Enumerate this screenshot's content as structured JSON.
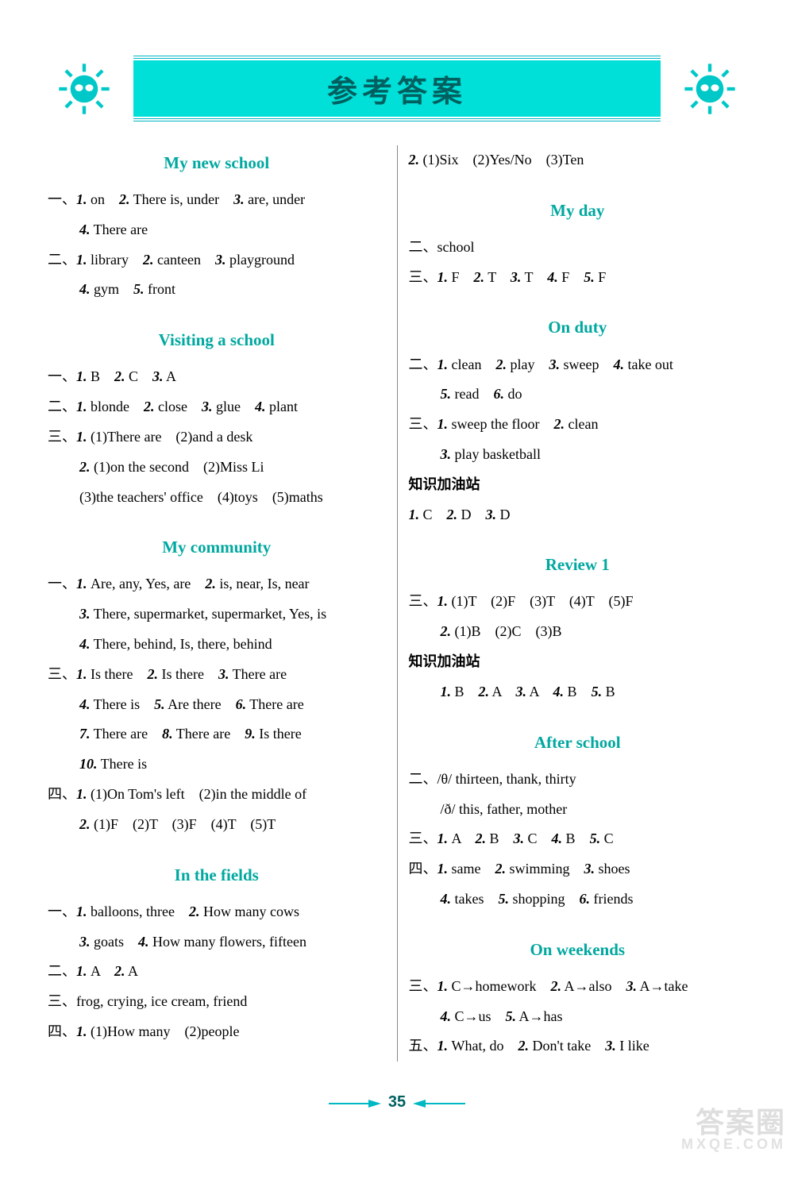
{
  "colors": {
    "accent": "#00b8c4",
    "banner_bg": "#00e0d8",
    "banner_text": "#006060",
    "section_title": "#00a8a0",
    "body_text": "#000000",
    "divider": "#888888",
    "background": "#ffffff"
  },
  "typography": {
    "body_fontsize_pt": 14,
    "section_title_fontsize_pt": 16,
    "banner_fontsize_pt": 28,
    "line_height": 2.1
  },
  "banner_title": "参考答案",
  "page_number": "35",
  "watermark": {
    "top": "答案圈",
    "bottom": "MXQE.COM"
  },
  "left": {
    "s1": {
      "title": "My new school",
      "l1": "一、1. on　2. There is, under　3. are, under",
      "l2": "4. There are",
      "l3": "二、1. library　2. canteen　3. playground",
      "l4": "4. gym　5. front"
    },
    "s2": {
      "title": "Visiting a school",
      "l1": "一、1. B　2. C　3. A",
      "l2": "二、1. blonde　2. close　3. glue　4. plant",
      "l3": "三、1. (1)There are　(2)and a desk",
      "l4": "2. (1)on the second　(2)Miss Li",
      "l5": "(3)the teachers' office　(4)toys　(5)maths"
    },
    "s3": {
      "title": "My community",
      "l1": "一、1. Are, any, Yes, are　2. is, near, Is, near",
      "l2": "3. There, supermarket, supermarket, Yes, is",
      "l3": "4. There, behind, Is, there, behind",
      "l4": "三、1. Is there　2. Is there　3. There are",
      "l5": "4. There is　5. Are there　6. There are",
      "l6": "7. There are　8. There are　9. Is there",
      "l7": "10. There is",
      "l8": "四、1. (1)On Tom's left　(2)in the middle of",
      "l9": "2. (1)F　(2)T　(3)F　(4)T　(5)T"
    },
    "s4": {
      "title": "In the fields",
      "l1": "一、1. balloons, three　2. How many cows",
      "l2": "3. goats　4. How many flowers, fifteen",
      "l3": "二、1. A　2. A",
      "l4": "三、frog, crying, ice cream, friend",
      "l5": "四、1. (1)How many　(2)people"
    }
  },
  "right": {
    "top_line": "2. (1)Six　(2)Yes/No　(3)Ten",
    "s1": {
      "title": "My day",
      "l1": "二、school",
      "l2": "三、1. F　2. T　3. T　4. F　5. F"
    },
    "s2": {
      "title": "On duty",
      "l1": "二、1. clean　2. play　3. sweep　4. take out",
      "l2": "5. read　6. do",
      "l3": "三、1. sweep the floor　2. clean",
      "l4": "3. play basketball",
      "l5": "知识加油站",
      "l6": "1. C　2. D　3. D"
    },
    "s3": {
      "title": "Review 1",
      "l1": "三、1. (1)T　(2)F　(3)T　(4)T　(5)F",
      "l2": "2. (1)B　(2)C　(3)B",
      "l3": "知识加油站",
      "l4": "1. B　2. A　3. A　4. B　5. B"
    },
    "s4": {
      "title": "After school",
      "l1": "二、/θ/ thirteen, thank, thirty",
      "l2": "/ð/ this, father, mother",
      "l3": "三、1. A　2. B　3. C　4. B　5. C",
      "l4": "四、1. same　2. swimming　3. shoes",
      "l5": "4. takes　5. shopping　6. friends"
    },
    "s5": {
      "title": "On weekends",
      "l1": "三、1. C→homework　2. A→also　3. A→take",
      "l2": "4. C→us　5. A→has",
      "l3": "五、1. What, do　2. Don't take　3. I like"
    }
  }
}
